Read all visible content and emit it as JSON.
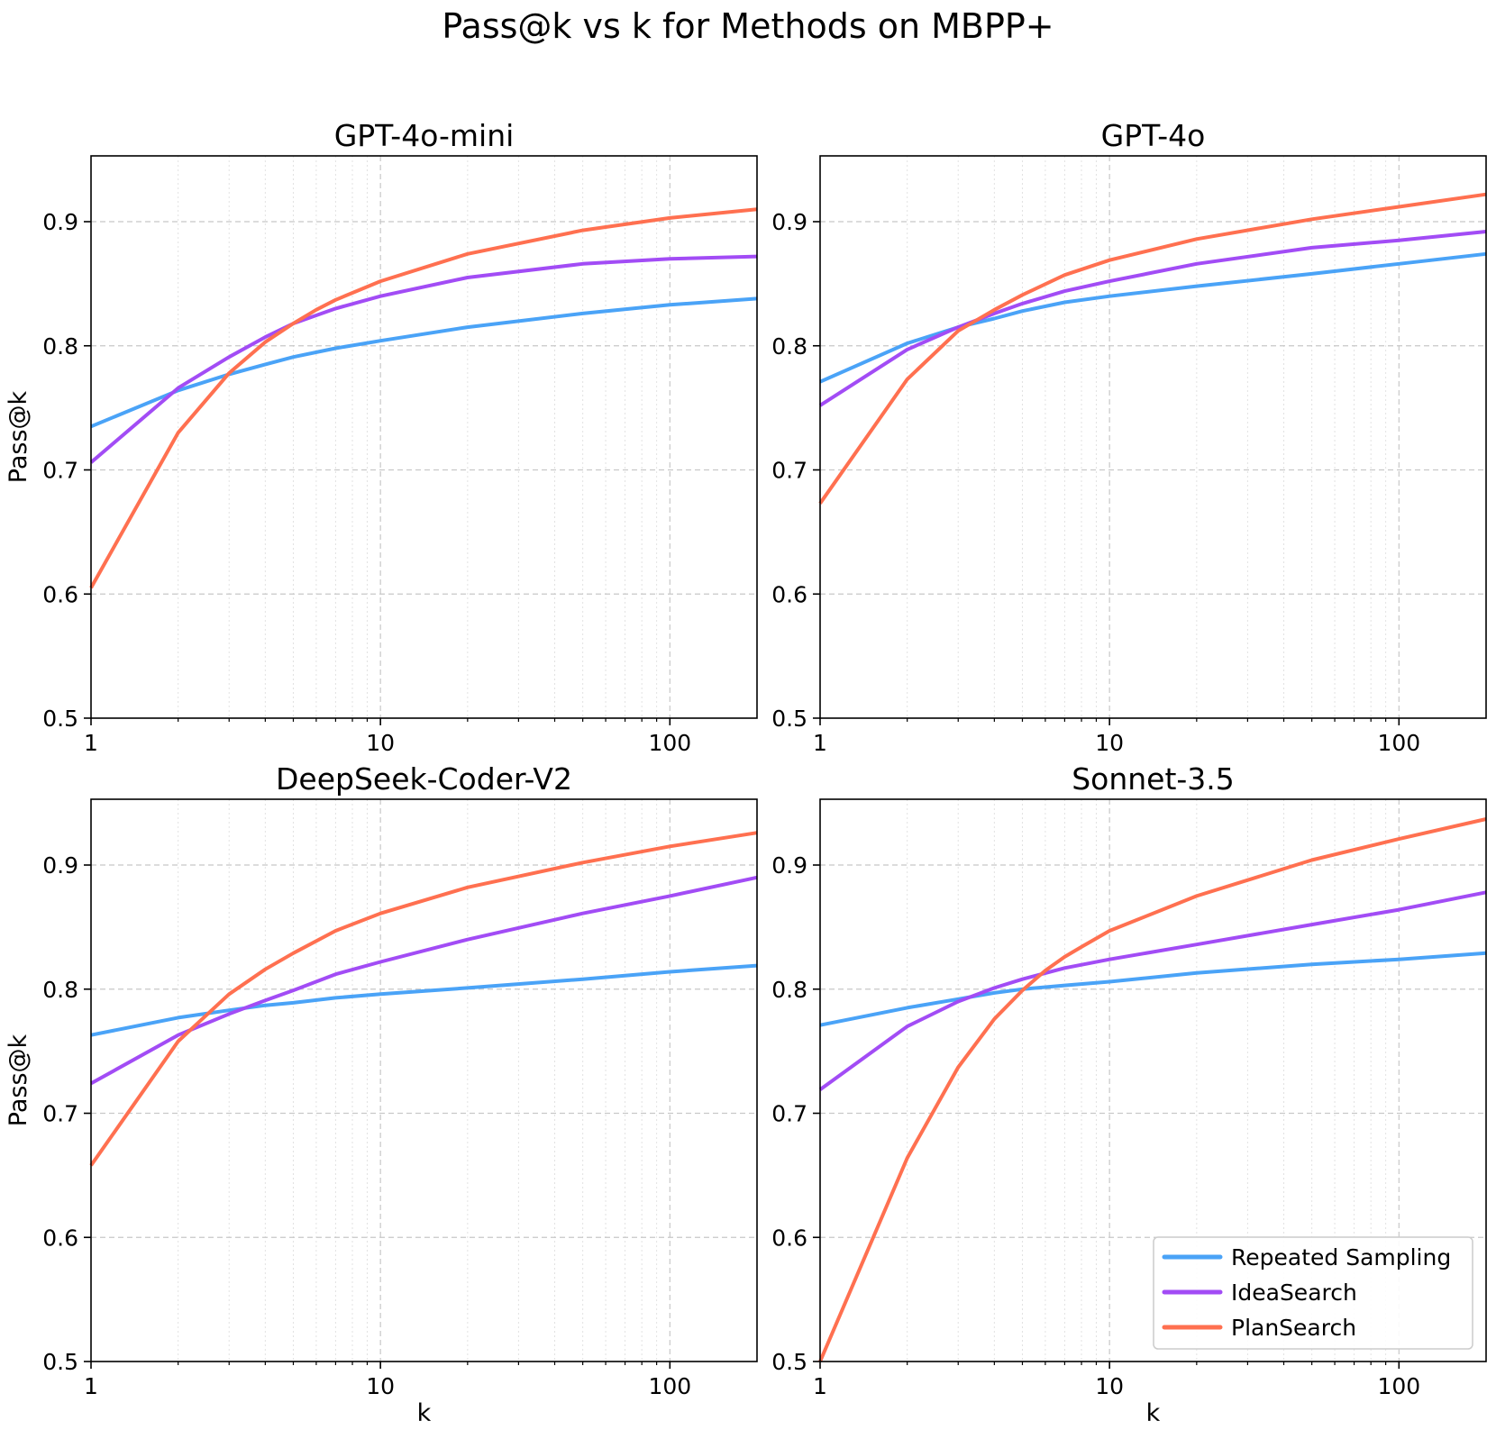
{
  "figure": {
    "title": "Pass@k vs k for Methods on MBPP+"
  },
  "legend": {
    "placement": "lower-right",
    "entries": [
      "Repeated Sampling",
      "IdeaSearch",
      "PlanSearch"
    ]
  },
  "colors": {
    "Repeated Sampling": "#4aa3f7",
    "IdeaSearch": "#a24cf5",
    "PlanSearch": "#ff7050",
    "grid_major": "#c8c8c8",
    "grid_minor": "#e2e2e2"
  },
  "chart_data": [
    {
      "type": "line",
      "title": "GPT-4o-mini",
      "xlabel": "",
      "ylabel": "Pass@k",
      "xscale": "log",
      "xlim": [
        1,
        200
      ],
      "ylim": [
        0.5,
        0.953
      ],
      "xticks": [
        "1",
        "10",
        "100"
      ],
      "yticks": [
        "0.5",
        "0.6",
        "0.7",
        "0.8",
        "0.9"
      ],
      "grid": true,
      "series": [
        {
          "name": "Repeated Sampling",
          "x": [
            1,
            2,
            3,
            4,
            5,
            7,
            10,
            20,
            50,
            100,
            200
          ],
          "y": [
            0.735,
            0.764,
            0.777,
            0.785,
            0.791,
            0.798,
            0.804,
            0.815,
            0.826,
            0.833,
            0.838
          ]
        },
        {
          "name": "IdeaSearch",
          "x": [
            1,
            2,
            3,
            4,
            5,
            7,
            10,
            20,
            50,
            100,
            200
          ],
          "y": [
            0.706,
            0.766,
            0.791,
            0.807,
            0.818,
            0.83,
            0.84,
            0.855,
            0.866,
            0.87,
            0.872
          ]
        },
        {
          "name": "PlanSearch",
          "x": [
            1,
            2,
            3,
            4,
            5,
            6,
            7,
            10,
            20,
            50,
            100,
            200
          ],
          "y": [
            0.605,
            0.73,
            0.778,
            0.803,
            0.818,
            0.829,
            0.837,
            0.852,
            0.874,
            0.893,
            0.903,
            0.91
          ]
        }
      ]
    },
    {
      "type": "line",
      "title": "GPT-4o",
      "xlabel": "",
      "ylabel": "",
      "xscale": "log",
      "xlim": [
        1,
        200
      ],
      "ylim": [
        0.5,
        0.953
      ],
      "xticks": [
        "1",
        "10",
        "100"
      ],
      "yticks": [
        "0.5",
        "0.6",
        "0.7",
        "0.8",
        "0.9"
      ],
      "grid": true,
      "series": [
        {
          "name": "Repeated Sampling",
          "x": [
            1,
            2,
            3,
            4,
            5,
            7,
            10,
            20,
            50,
            100,
            200
          ],
          "y": [
            0.771,
            0.802,
            0.815,
            0.822,
            0.828,
            0.835,
            0.84,
            0.848,
            0.858,
            0.866,
            0.874
          ]
        },
        {
          "name": "IdeaSearch",
          "x": [
            1,
            2,
            3,
            4,
            5,
            7,
            10,
            20,
            50,
            100,
            200
          ],
          "y": [
            0.752,
            0.797,
            0.815,
            0.826,
            0.834,
            0.844,
            0.852,
            0.866,
            0.879,
            0.885,
            0.892
          ]
        },
        {
          "name": "PlanSearch",
          "x": [
            1,
            2,
            3,
            4,
            5,
            7,
            10,
            20,
            50,
            100,
            200
          ],
          "y": [
            0.673,
            0.773,
            0.812,
            0.829,
            0.841,
            0.857,
            0.869,
            0.886,
            0.902,
            0.912,
            0.922
          ]
        }
      ]
    },
    {
      "type": "line",
      "title": "DeepSeek-Coder-V2",
      "xlabel": "k",
      "ylabel": "Pass@k",
      "xscale": "log",
      "xlim": [
        1,
        200
      ],
      "ylim": [
        0.5,
        0.953
      ],
      "xticks": [
        "1",
        "10",
        "100"
      ],
      "yticks": [
        "0.5",
        "0.6",
        "0.7",
        "0.8",
        "0.9"
      ],
      "grid": true,
      "series": [
        {
          "name": "Repeated Sampling",
          "x": [
            1,
            2,
            3,
            4,
            5,
            7,
            10,
            20,
            50,
            100,
            200
          ],
          "y": [
            0.763,
            0.777,
            0.783,
            0.787,
            0.789,
            0.793,
            0.796,
            0.801,
            0.808,
            0.814,
            0.819
          ]
        },
        {
          "name": "IdeaSearch",
          "x": [
            1,
            2,
            3,
            4,
            5,
            7,
            10,
            20,
            50,
            100,
            200
          ],
          "y": [
            0.724,
            0.763,
            0.78,
            0.791,
            0.799,
            0.812,
            0.822,
            0.84,
            0.861,
            0.875,
            0.89
          ]
        },
        {
          "name": "PlanSearch",
          "x": [
            1,
            2,
            3,
            4,
            5,
            7,
            10,
            20,
            50,
            100,
            200
          ],
          "y": [
            0.658,
            0.758,
            0.796,
            0.816,
            0.829,
            0.847,
            0.861,
            0.882,
            0.902,
            0.915,
            0.926
          ]
        }
      ]
    },
    {
      "type": "line",
      "title": "Sonnet-3.5",
      "xlabel": "k",
      "ylabel": "",
      "xscale": "log",
      "xlim": [
        1,
        200
      ],
      "ylim": [
        0.5,
        0.953
      ],
      "xticks": [
        "1",
        "10",
        "100"
      ],
      "yticks": [
        "0.5",
        "0.6",
        "0.7",
        "0.8",
        "0.9"
      ],
      "grid": true,
      "series": [
        {
          "name": "Repeated Sampling",
          "x": [
            1,
            2,
            3,
            4,
            5,
            7,
            10,
            20,
            50,
            100,
            200
          ],
          "y": [
            0.771,
            0.785,
            0.792,
            0.797,
            0.8,
            0.803,
            0.806,
            0.813,
            0.82,
            0.824,
            0.829
          ]
        },
        {
          "name": "IdeaSearch",
          "x": [
            1,
            2,
            3,
            4,
            5,
            7,
            10,
            20,
            50,
            100,
            200
          ],
          "y": [
            0.719,
            0.77,
            0.79,
            0.801,
            0.808,
            0.817,
            0.824,
            0.836,
            0.852,
            0.864,
            0.878
          ]
        },
        {
          "name": "PlanSearch",
          "x": [
            1,
            2,
            3,
            4,
            5,
            6,
            7,
            8,
            10,
            20,
            50,
            100,
            200
          ],
          "y": [
            0.5,
            0.664,
            0.737,
            0.776,
            0.799,
            0.815,
            0.826,
            0.834,
            0.847,
            0.875,
            0.904,
            0.921,
            0.937
          ]
        }
      ]
    }
  ]
}
